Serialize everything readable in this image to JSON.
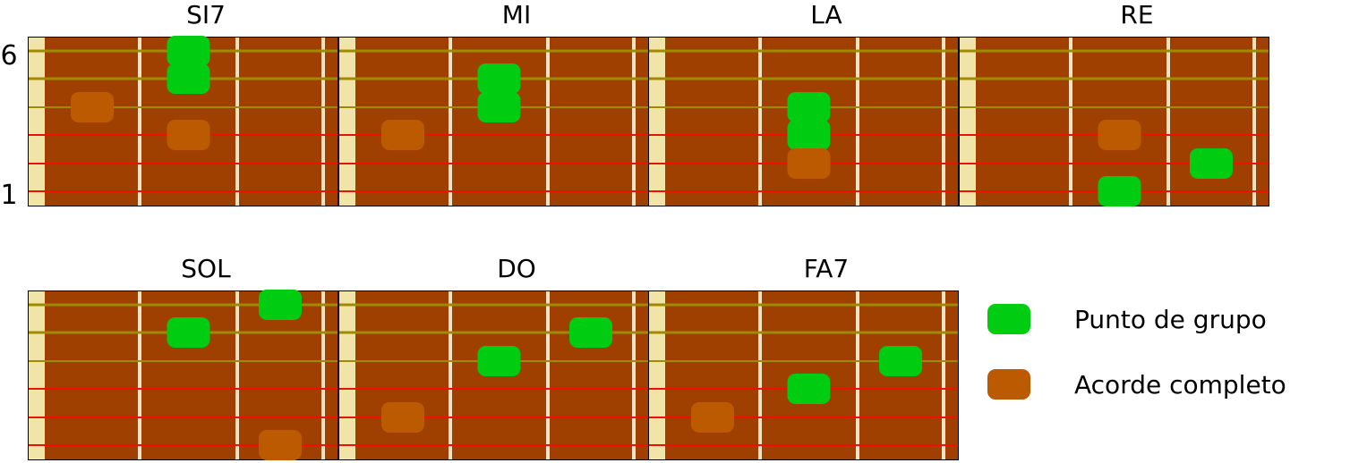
{
  "string_labels": {
    "top": "6",
    "bottom": "1"
  },
  "colors": {
    "fretboard": "#a04000",
    "nut": "#f0e4a8",
    "fret": "#f0e4c8",
    "string_wound": "#a08a00",
    "string_plain": "#ee1100",
    "group_dot": "#00cc11",
    "full_chord_dot": "#bb5a00",
    "border": "#000000"
  },
  "legend": {
    "items": [
      {
        "key": "group",
        "label": "Punto de grupo"
      },
      {
        "key": "full",
        "label": "Acorde completo"
      }
    ]
  },
  "chords": [
    {
      "name": "SI7",
      "dots": [
        {
          "string": 6,
          "fret": 2,
          "kind": "group"
        },
        {
          "string": 5,
          "fret": 2,
          "kind": "group"
        },
        {
          "string": 4,
          "fret": 1,
          "kind": "full"
        },
        {
          "string": 3,
          "fret": 2,
          "kind": "full"
        }
      ]
    },
    {
      "name": "MI",
      "dots": [
        {
          "string": 5,
          "fret": 2,
          "kind": "group"
        },
        {
          "string": 4,
          "fret": 2,
          "kind": "group"
        },
        {
          "string": 3,
          "fret": 1,
          "kind": "full"
        }
      ]
    },
    {
      "name": "LA",
      "dots": [
        {
          "string": 4,
          "fret": 2,
          "kind": "group"
        },
        {
          "string": 3,
          "fret": 2,
          "kind": "group"
        },
        {
          "string": 2,
          "fret": 2,
          "kind": "full"
        }
      ]
    },
    {
      "name": "RE",
      "dots": [
        {
          "string": 3,
          "fret": 2,
          "kind": "full"
        },
        {
          "string": 2,
          "fret": 3,
          "kind": "group"
        },
        {
          "string": 1,
          "fret": 2,
          "kind": "group"
        }
      ]
    },
    {
      "name": "SOL",
      "dots": [
        {
          "string": 6,
          "fret": 3,
          "kind": "group"
        },
        {
          "string": 5,
          "fret": 2,
          "kind": "group"
        },
        {
          "string": 1,
          "fret": 3,
          "kind": "full"
        }
      ]
    },
    {
      "name": "DO",
      "dots": [
        {
          "string": 5,
          "fret": 3,
          "kind": "group"
        },
        {
          "string": 4,
          "fret": 2,
          "kind": "group"
        },
        {
          "string": 2,
          "fret": 1,
          "kind": "full"
        }
      ]
    },
    {
      "name": "FA7",
      "dots": [
        {
          "string": 4,
          "fret": 3,
          "kind": "group"
        },
        {
          "string": 3,
          "fret": 2,
          "kind": "group"
        },
        {
          "string": 2,
          "fret": 1,
          "kind": "full"
        }
      ]
    }
  ]
}
